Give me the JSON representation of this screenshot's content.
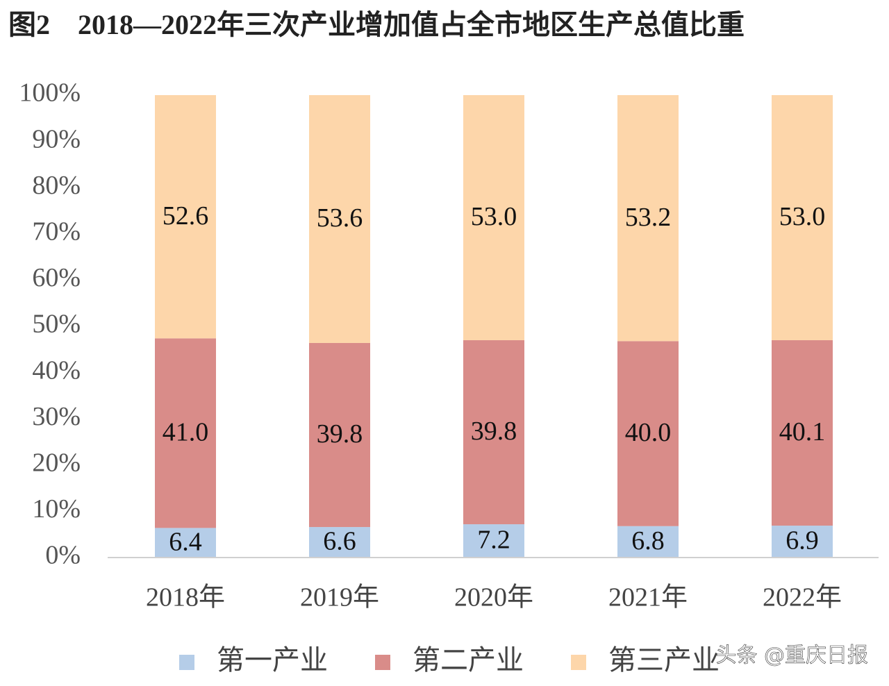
{
  "chart_data": {
    "type": "stacked_bar",
    "title": "图2　2018—2022年三次产业增加值占全市地区生产总值比重",
    "categories": [
      "2018年",
      "2019年",
      "2020年",
      "2021年",
      "2022年"
    ],
    "series": [
      {
        "name": "第一产业",
        "color": "#b5cde8",
        "values": [
          6.4,
          6.6,
          7.2,
          6.8,
          6.9
        ],
        "value_labels": [
          "6.4",
          "6.6",
          "7.2",
          "6.8",
          "6.9"
        ]
      },
      {
        "name": "第二产业",
        "color": "#d98c89",
        "values": [
          41.0,
          39.8,
          39.8,
          40.0,
          40.1
        ],
        "value_labels": [
          "41.0",
          "39.8",
          "39.8",
          "40.0",
          "40.1"
        ]
      },
      {
        "name": "第三产业",
        "color": "#fdd6aa",
        "values": [
          52.6,
          53.6,
          53.0,
          53.2,
          53.0
        ],
        "value_labels": [
          "52.6",
          "53.6",
          "53.0",
          "53.2",
          "53.0"
        ]
      }
    ],
    "ylim": [
      0,
      100
    ],
    "yticks": [
      {
        "value": 0,
        "label": "0%"
      },
      {
        "value": 10,
        "label": "10%"
      },
      {
        "value": 20,
        "label": "20%"
      },
      {
        "value": 30,
        "label": "30%"
      },
      {
        "value": 40,
        "label": "40%"
      },
      {
        "value": 50,
        "label": "50%"
      },
      {
        "value": 60,
        "label": "60%"
      },
      {
        "value": 70,
        "label": "70%"
      },
      {
        "value": 80,
        "label": "80%"
      },
      {
        "value": 90,
        "label": "90%"
      },
      {
        "value": 100,
        "label": "100%"
      }
    ],
    "grid": false,
    "legend": "bottom",
    "watermark": "头条 @重庆日报"
  }
}
